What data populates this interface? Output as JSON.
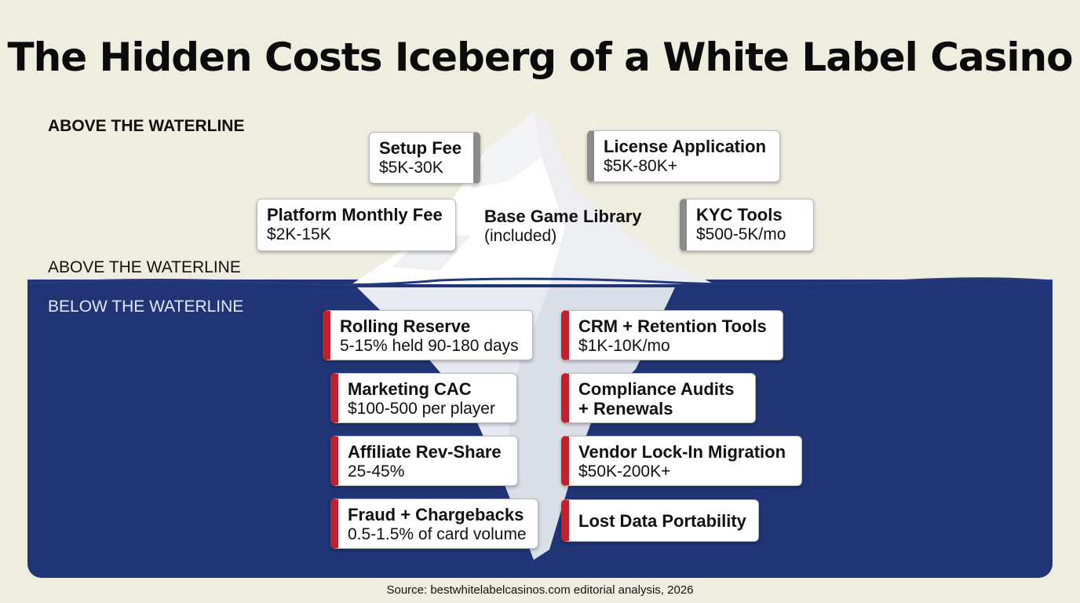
{
  "title": "The Hidden Costs Iceberg of a White Label Casino",
  "labels": {
    "above_bold": "ABOVE THE WATERLINE",
    "above": "ABOVE THE WATERLINE",
    "below": "BELOW THE WATERLINE"
  },
  "above_items": [
    {
      "title": "Setup Fee",
      "value": "$5K-30K"
    },
    {
      "title": "License Application",
      "value": "$5K-80K+"
    },
    {
      "title": "Platform Monthly Fee",
      "value": "$2K-15K"
    },
    {
      "title": "Base Game Library",
      "value": "(included)"
    },
    {
      "title": "KYC Tools",
      "value": "$500-5K/mo"
    }
  ],
  "below_items": [
    {
      "title": "Rolling Reserve",
      "value": "5-15% held 90-180 days"
    },
    {
      "title": "CRM + Retention Tools",
      "value": "$1K-10K/mo"
    },
    {
      "title": "Marketing CAC",
      "value": "$100-500 per player"
    },
    {
      "title": "Compliance Audits",
      "title2": "+ Renewals"
    },
    {
      "title": "Affiliate Rev-Share",
      "value": "25-45%"
    },
    {
      "title": "Vendor Lock-In Migration",
      "value": "$50K-200K+"
    },
    {
      "title": "Fraud + Chargebacks",
      "value": "0.5-1.5% of card volume"
    },
    {
      "title": "Lost Data Portability"
    }
  ],
  "source": "Source: bestwhitelabelcasinos.com editorial analysis, 2026",
  "colors": {
    "background": "#efece0",
    "water": "#213576",
    "waterline": "#243a7a",
    "ice": "#ffffff",
    "ice_shadow": "#dfe3ea",
    "accent_red": "#c4202b",
    "accent_gray": "#8c8c8c"
  }
}
